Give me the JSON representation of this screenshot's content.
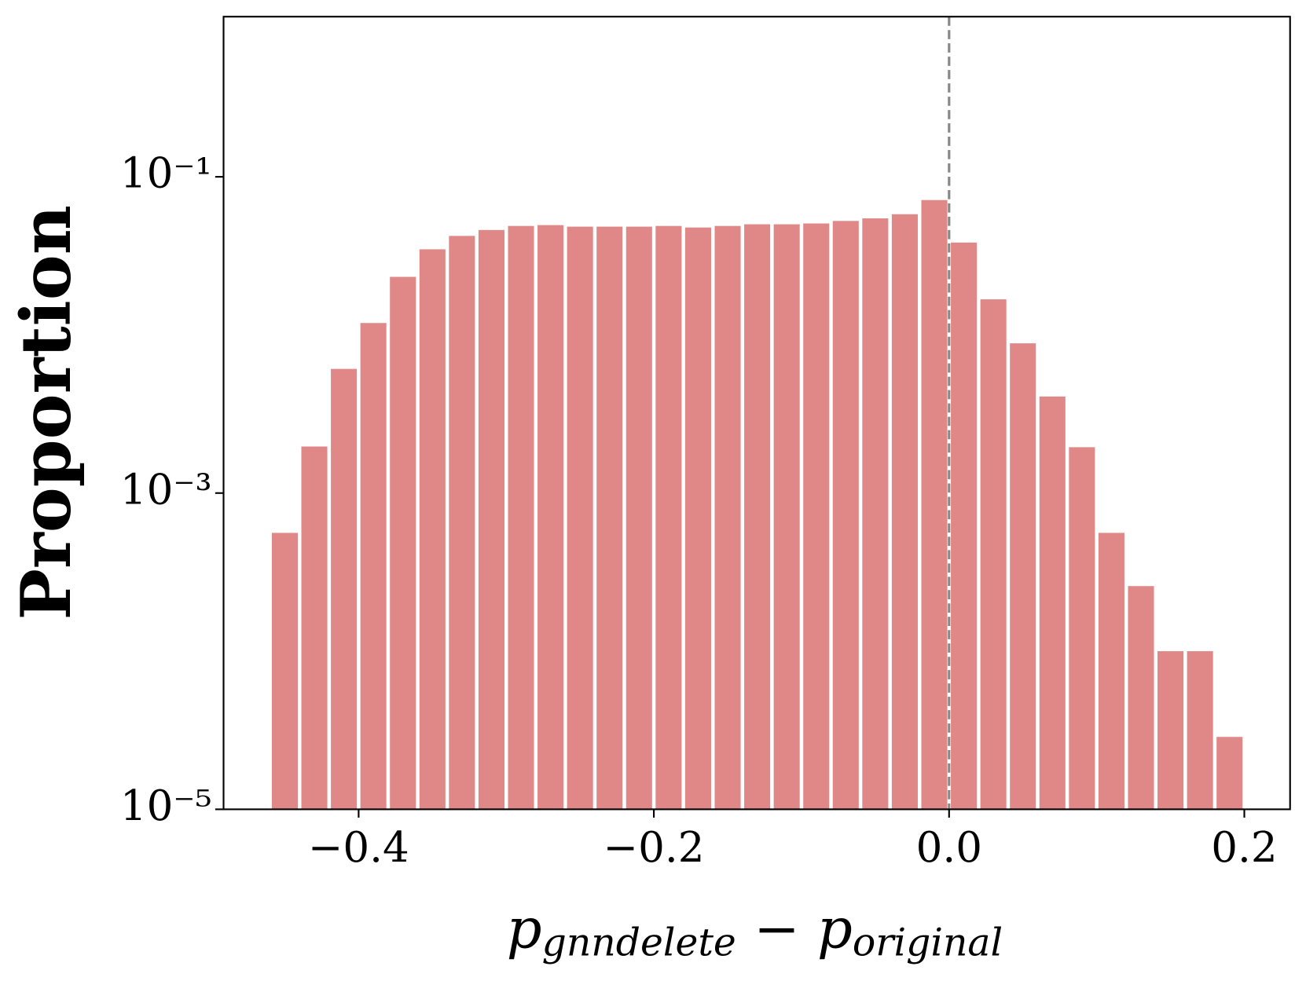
{
  "chart_data": {
    "type": "histogram",
    "ylabel": "Proportion",
    "xlabel": [
      "p",
      "gnndelete",
      " − ",
      "p",
      "original"
    ],
    "bins": [
      -0.46,
      -0.44,
      -0.42,
      -0.4,
      -0.38,
      -0.36,
      -0.34,
      -0.32,
      -0.3,
      -0.28,
      -0.26,
      -0.24,
      -0.22,
      -0.2,
      -0.18,
      -0.16,
      -0.14,
      -0.12,
      -0.1,
      -0.08,
      -0.06,
      -0.04,
      -0.02,
      0.0,
      0.02,
      0.04,
      0.06,
      0.08,
      0.1,
      0.12,
      0.14,
      0.16,
      0.18,
      0.2
    ],
    "values": [
      0.00056,
      0.00197,
      0.0061,
      0.0119,
      0.0233,
      0.0348,
      0.0423,
      0.0461,
      0.0489,
      0.0495,
      0.0484,
      0.0484,
      0.0484,
      0.0489,
      0.0478,
      0.0489,
      0.0501,
      0.0501,
      0.0507,
      0.0526,
      0.0546,
      0.058,
      0.0713,
      0.0384,
      0.0168,
      0.00885,
      0.00408,
      0.00195,
      0.00056,
      0.000258,
      0.0001,
      0.0001,
      2.87e-05
    ],
    "color": "#e08888",
    "yscale": "log",
    "xlim": [
      -0.4915,
      0.231
    ],
    "ylim": [
      1e-05,
      1.03
    ],
    "xticks": [
      {
        "value": -0.4,
        "label": "−0.4"
      },
      {
        "value": -0.2,
        "label": "−0.2"
      },
      {
        "value": 0.0,
        "label": "0.0"
      },
      0.2
    ],
    "yticks": [
      {
        "value": 0.1,
        "label": "10⁻¹"
      },
      {
        "value": 0.001,
        "label": "10⁻³"
      },
      {
        "value": 1e-05,
        "label": "10⁻⁵"
      }
    ],
    "vlines": [
      {
        "x": 0.0,
        "color": "#888888",
        "style": "dashed"
      }
    ]
  }
}
